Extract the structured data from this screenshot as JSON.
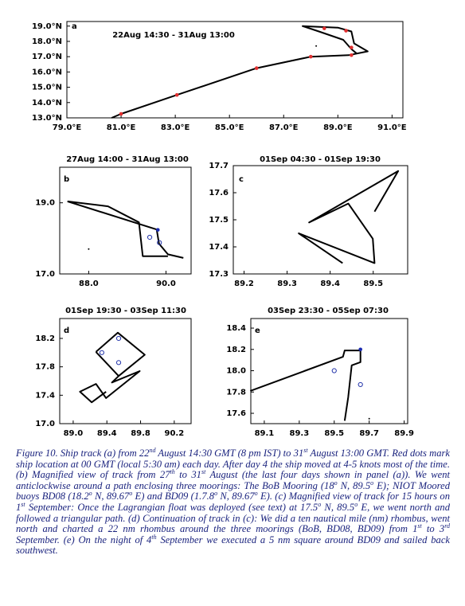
{
  "chart_data": [
    {
      "type": "line",
      "label": "a",
      "title": "22Aug 14:30 - 31Aug 13:00",
      "xlim": [
        79,
        91.4
      ],
      "ylim": [
        13,
        19.3
      ],
      "xticks": [
        {
          "value": 79,
          "label": "79.0°E"
        },
        {
          "value": 81,
          "label": "81.0°E"
        },
        {
          "value": 83,
          "label": "83.0°E"
        },
        {
          "value": 85,
          "label": "85.0°E"
        },
        {
          "value": 87,
          "label": "87.0°E"
        },
        {
          "value": 89,
          "label": "89.0°E"
        },
        {
          "value": 91,
          "label": "91.0°E"
        }
      ],
      "yticks": [
        {
          "value": 13,
          "label": "13.0°N"
        },
        {
          "value": 14,
          "label": "14.0°N"
        },
        {
          "value": 15,
          "label": "15.0°N"
        },
        {
          "value": 16,
          "label": "16.0°N"
        },
        {
          "value": 17,
          "label": "17.0°N"
        },
        {
          "value": 18,
          "label": "18.0°N"
        },
        {
          "value": 19,
          "label": "19.0°N"
        }
      ],
      "track": {
        "color": "#000000",
        "x": [
          80.65,
          81.0,
          83.06,
          86.0,
          88.0,
          89.4,
          90.1,
          89.6,
          89.5,
          89.0,
          87.7,
          88.3,
          89.2,
          89.5,
          89.7
        ],
        "y": [
          13.0,
          13.26,
          14.5,
          16.25,
          17.0,
          17.1,
          17.35,
          17.87,
          18.65,
          18.9,
          19.0,
          18.65,
          18.1,
          17.5,
          17.2
        ]
      },
      "points": [
        {
          "style": "dot",
          "color": "#e03030",
          "x": [
            81.0,
            83.06,
            86.0,
            88.0,
            89.5,
            89.5,
            89.3,
            88.5
          ],
          "y": [
            13.26,
            14.5,
            16.25,
            17.0,
            17.1,
            17.6,
            18.7,
            18.85
          ]
        },
        {
          "style": "dot",
          "color": "#000000",
          "x": [
            88.2
          ],
          "y": [
            17.7
          ]
        }
      ]
    },
    {
      "type": "line",
      "label": "b",
      "title": "27Aug 14:00 - 31Aug 13:00",
      "xlim": [
        87.25,
        90.65
      ],
      "ylim": [
        17,
        20
      ],
      "xticks": [
        {
          "value": 88,
          "label": "88.0"
        },
        {
          "value": 90,
          "label": "90.0"
        }
      ],
      "yticks": [
        {
          "value": 17,
          "label": "17.0"
        },
        {
          "value": 19,
          "label": "19.0"
        }
      ],
      "track": {
        "color": "#000000",
        "x": [
          87.45,
          89.76,
          89.82,
          90.05,
          90.45,
          null,
          87.45,
          88.5,
          89.3,
          89.4,
          90.05
        ],
        "y": [
          19.04,
          18.25,
          17.85,
          17.55,
          17.45,
          null,
          19.04,
          18.9,
          18.45,
          17.5,
          17.5
        ]
      },
      "points": [
        {
          "style": "circle",
          "color": "#2233aa",
          "x": [
            89.58,
            89.83
          ],
          "y": [
            18.03,
            17.88
          ]
        },
        {
          "style": "dot",
          "color": "#1a2ab0",
          "x": [
            89.79
          ],
          "y": [
            18.24
          ]
        },
        {
          "style": "dot",
          "color": "#000000",
          "x": [
            88.0
          ],
          "y": [
            17.7
          ]
        }
      ]
    },
    {
      "type": "line",
      "label": "c",
      "title": "01Sep 04:30 - 01Sep 19:30",
      "xlim": [
        89.175,
        89.58
      ],
      "ylim": [
        17.3,
        17.7
      ],
      "xticks": [
        89.2,
        89.3,
        89.4,
        89.5
      ],
      "yticks": [
        17.3,
        17.4,
        17.5,
        17.6,
        17.7
      ],
      "track": {
        "color": "#000000",
        "x": [
          89.503,
          89.558,
          89.351,
          89.442,
          89.499,
          89.503,
          89.327,
          89.429
        ],
        "y": [
          17.53,
          17.68,
          17.49,
          17.56,
          17.43,
          17.34,
          17.45,
          17.34
        ]
      },
      "points": []
    },
    {
      "type": "line",
      "label": "d",
      "title": "01Sep 19:30 - 03Sep 11:30",
      "xlim": [
        88.84,
        90.4
      ],
      "ylim": [
        17,
        18.48
      ],
      "xticks": [
        {
          "value": 89,
          "label": "89.0"
        },
        89.4,
        89.8,
        90.2
      ],
      "yticks": [
        {
          "value": 17,
          "label": "17.0"
        },
        17.4,
        17.8,
        18.2
      ],
      "track": {
        "color": "#000000",
        "x": [
          89.27,
          89.53,
          89.85,
          89.54,
          89.27,
          null,
          89.54,
          89.46,
          89.79,
          89.39,
          89.27,
          89.08,
          89.22,
          89.39
        ],
        "y": [
          18.01,
          18.28,
          17.97,
          17.67,
          18.01,
          null,
          17.67,
          17.58,
          17.74,
          17.36,
          17.56,
          17.45,
          17.3,
          17.45
        ]
      },
      "points": [
        {
          "style": "circle",
          "color": "#2233aa",
          "x": [
            89.34,
            89.54,
            89.54
          ],
          "y": [
            18.0,
            18.2,
            17.86
          ]
        }
      ]
    },
    {
      "type": "line",
      "label": "e",
      "title": "03Sep 23:30 - 05Sep 07:30",
      "xlim": [
        89.023,
        89.92
      ],
      "ylim": [
        17.503,
        18.49
      ],
      "xticks": [
        89.1,
        89.3,
        89.5,
        89.7,
        89.9
      ],
      "yticks": [
        17.6,
        17.8,
        {
          "value": 18,
          "label": "18.0"
        },
        18.2,
        18.4
      ],
      "track": {
        "color": "#000000",
        "x": [
          89.02,
          89.55,
          89.56,
          89.65,
          89.65,
          89.6,
          89.58,
          89.56
        ],
        "y": [
          17.81,
          18.13,
          18.19,
          18.19,
          18.08,
          18.05,
          17.75,
          17.53
        ]
      },
      "points": [
        {
          "style": "circle",
          "color": "#2233aa",
          "x": [
            89.5,
            89.65
          ],
          "y": [
            18.0,
            17.87
          ]
        },
        {
          "style": "dot",
          "color": "#1a2ab0",
          "x": [
            89.65
          ],
          "y": [
            18.2
          ]
        },
        {
          "style": "dot",
          "color": "#000000",
          "x": [
            89.7
          ],
          "y": [
            17.55
          ]
        }
      ]
    }
  ],
  "caption": [
    "Figure 10. Ship track (a) from 22",
    {
      "text": "nd",
      "sup": true
    },
    " August 14:30 GMT (8 pm IST) to 31",
    {
      "text": "st",
      "sup": true
    },
    " August 13:00 GMT. Red dots mark ship location at 00 GMT (local 5:30 am) each day. After day 4 the ship moved at 4-5 knots most of the time. (b) Magnified view of track from 27",
    {
      "text": "th",
      "sup": true
    },
    " to 31",
    {
      "text": "st",
      "sup": true
    },
    " August (the last four days shown in panel (a)). We went anticlockwise around a path enclosing three moorings: The BoB Mooring (18",
    {
      "text": "o",
      "sup": true
    },
    " N, 89.5",
    {
      "text": "o",
      "sup": true
    },
    " E); NIOT Moored buoys BD08 (18.2",
    {
      "text": "o",
      "sup": true
    },
    " N, 89.67",
    {
      "text": "o",
      "sup": true
    },
    " E) and BD09 (1.7.8",
    {
      "text": "o",
      "sup": true
    },
    " N, 89.67",
    {
      "text": "o",
      "sup": true
    },
    " E). (c) Magnified view of track for 15 hours on 1",
    {
      "text": "st",
      "sup": true
    },
    " September: Once the Lagrangian float was deployed (see text) at 17.5",
    {
      "text": "o",
      "sup": true
    },
    " N, 89.5",
    {
      "text": "o",
      "sup": true
    },
    " E, we went north and followed a triangular path. (d) Continuation of track in (c): We did a ten nautical mile (nm) rhombus, went north and charted a 22 nm rhombus around the three moorings (BoB, BD08, BD09) from 1",
    {
      "text": "st",
      "sup": true
    },
    " to 3",
    {
      "text": "rd",
      "sup": true
    },
    " September. (e) On the night of 4",
    {
      "text": "th",
      "sup": true
    },
    " September we executed a 5 nm square around BD09 and sailed back southwest."
  ]
}
